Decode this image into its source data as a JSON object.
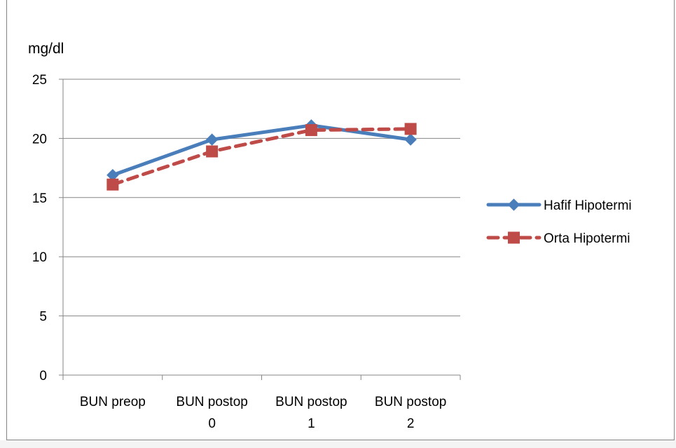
{
  "chart_data": {
    "type": "line",
    "ylabel": "mg/dl",
    "categories": [
      [
        "BUN preop"
      ],
      [
        "BUN postop",
        "0"
      ],
      [
        "BUN postop",
        "1"
      ],
      [
        "BUN postop",
        "2"
      ]
    ],
    "ylim": [
      0,
      25
    ],
    "yticks": [
      0,
      5,
      10,
      15,
      20,
      25
    ],
    "grid": true,
    "legend_position": "right",
    "series": [
      {
        "name": "Hafif Hipotermi",
        "values": [
          16.9,
          19.9,
          21.1,
          19.9
        ],
        "color": "#4a7ebb",
        "marker": "diamond",
        "dash": "solid"
      },
      {
        "name": "Orta Hipotermi",
        "values": [
          16.1,
          18.9,
          20.7,
          20.8
        ],
        "color": "#be4b48",
        "marker": "square",
        "dash": "dashed"
      }
    ]
  }
}
